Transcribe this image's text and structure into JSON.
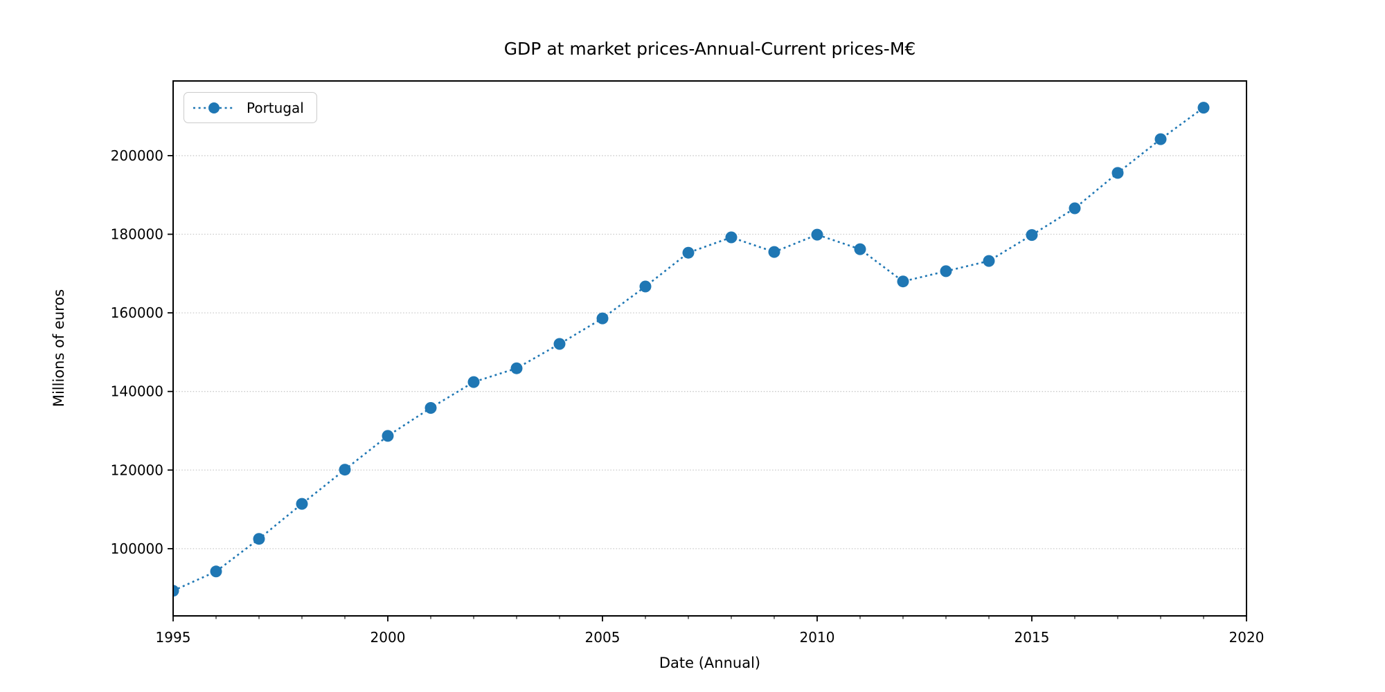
{
  "chart_data": {
    "type": "line",
    "title": "GDP at market prices-Annual-Current prices-M€",
    "xlabel": "Date (Annual)",
    "ylabel": "Millions of euros",
    "legend_position": "upper left",
    "grid": "horizontal dotted",
    "line_style": "dotted",
    "marker": "circle",
    "grid_color": "#c8c8c8",
    "xlim": [
      1995,
      2020
    ],
    "ylim": [
      82900,
      219000
    ],
    "x_ticks": [
      1995,
      2000,
      2005,
      2010,
      2015,
      2020
    ],
    "x_tick_labels": [
      "1995",
      "2000",
      "2005",
      "2010",
      "2015",
      "2020"
    ],
    "y_ticks": [
      100000,
      120000,
      140000,
      160000,
      180000,
      200000
    ],
    "y_tick_labels": [
      "100000",
      "120000",
      "140000",
      "160000",
      "180000",
      "200000"
    ],
    "x": [
      1995,
      1996,
      1997,
      1998,
      1999,
      2000,
      2001,
      2002,
      2003,
      2004,
      2005,
      2006,
      2007,
      2008,
      2009,
      2010,
      2011,
      2012,
      2013,
      2014,
      2015,
      2016,
      2017,
      2018,
      2019
    ],
    "series": [
      {
        "name": "Portugal",
        "color": "#1f77b4",
        "values": [
          89300,
          94200,
          102500,
          111400,
          120100,
          128700,
          135800,
          142400,
          145900,
          152100,
          158600,
          166700,
          175300,
          179200,
          175500,
          179900,
          176200,
          168000,
          170600,
          173200,
          179800,
          186600,
          195600,
          204200,
          212200
        ]
      }
    ]
  }
}
